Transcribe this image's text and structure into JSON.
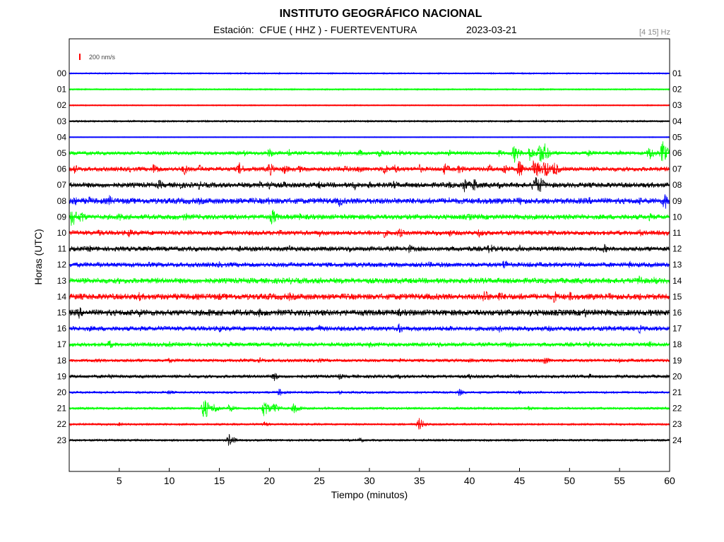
{
  "header": {
    "title": "INSTITUTO GEOGRÁFICO NACIONAL",
    "station_prefix": "Estación:",
    "station": "CFUE ( HHZ ) - FUERTEVENTURA",
    "date": "2023-03-21",
    "filter": "[4 15] Hz"
  },
  "colors": {
    "blue": "#0000ff",
    "green": "#00ff00",
    "red": "#ff0000",
    "black": "#000000"
  },
  "chart_data": {
    "type": "line",
    "title": "INSTITUTO GEOGRÁFICO NACIONAL",
    "xlabel": "Tiempo (minutos)",
    "ylabel": "Horas (UTC)",
    "xlim": [
      0,
      60
    ],
    "x_ticks": [
      5,
      10,
      15,
      20,
      25,
      30,
      35,
      40,
      45,
      50,
      55,
      60
    ],
    "scale_bar": "200 nm/s",
    "left_labels": [
      "00",
      "01",
      "02",
      "03",
      "04",
      "05",
      "06",
      "07",
      "08",
      "09",
      "10",
      "11",
      "12",
      "13",
      "14",
      "15",
      "16",
      "17",
      "18",
      "19",
      "20",
      "21",
      "22",
      "23"
    ],
    "right_labels": [
      "01",
      "02",
      "03",
      "04",
      "05",
      "06",
      "07",
      "08",
      "09",
      "10",
      "11",
      "12",
      "13",
      "14",
      "15",
      "16",
      "17",
      "18",
      "19",
      "20",
      "21",
      "22",
      "23",
      "24"
    ],
    "series": [
      {
        "color": "blue",
        "noise": 1.0,
        "events": [
          [
            9.5,
            1.5
          ]
        ]
      },
      {
        "color": "green",
        "noise": 1.0,
        "events": [
          [
            16,
            1.2
          ],
          [
            24,
            1.2
          ]
        ]
      },
      {
        "color": "red",
        "noise": 0.8,
        "events": []
      },
      {
        "color": "black",
        "noise": 1.2,
        "events": []
      },
      {
        "color": "blue",
        "noise": 0.6,
        "events": []
      },
      {
        "color": "green",
        "noise": 2.5,
        "events": [
          [
            17.5,
            5
          ],
          [
            20,
            8
          ],
          [
            22,
            6
          ],
          [
            27,
            7
          ],
          [
            29,
            6
          ],
          [
            31,
            7
          ],
          [
            33,
            5
          ],
          [
            38,
            5
          ],
          [
            43,
            6
          ],
          [
            44.5,
            14
          ],
          [
            46,
            12
          ],
          [
            47,
            18
          ],
          [
            47.5,
            15
          ],
          [
            52,
            6
          ],
          [
            55,
            5
          ],
          [
            58,
            12
          ],
          [
            59.3,
            18
          ]
        ]
      },
      {
        "color": "red",
        "noise": 3.0,
        "events": [
          [
            0.5,
            8
          ],
          [
            6,
            5
          ],
          [
            8.5,
            10
          ],
          [
            11.5,
            9
          ],
          [
            13,
            7
          ],
          [
            17,
            10
          ],
          [
            20,
            11
          ],
          [
            21.5,
            8
          ],
          [
            23,
            6
          ],
          [
            27.5,
            7
          ],
          [
            29,
            8
          ],
          [
            31.5,
            9
          ],
          [
            32.5,
            8
          ],
          [
            35,
            7
          ],
          [
            37.5,
            9
          ],
          [
            39,
            8
          ],
          [
            42,
            7
          ],
          [
            43.5,
            10
          ],
          [
            45,
            14
          ],
          [
            46.5,
            18
          ],
          [
            47.5,
            16
          ],
          [
            48.5,
            12
          ],
          [
            55,
            4
          ]
        ]
      },
      {
        "color": "black",
        "noise": 3.5,
        "events": [
          [
            9,
            8
          ],
          [
            11,
            8
          ],
          [
            13,
            7
          ],
          [
            19,
            7
          ],
          [
            20,
            9
          ],
          [
            21.5,
            6
          ],
          [
            25,
            6
          ],
          [
            28.5,
            8
          ],
          [
            30,
            6
          ],
          [
            32.5,
            7
          ],
          [
            38,
            6
          ],
          [
            39.5,
            12
          ],
          [
            40.5,
            11
          ],
          [
            43,
            6
          ],
          [
            46.5,
            16
          ],
          [
            47,
            14
          ]
        ]
      },
      {
        "color": "blue",
        "noise": 4.0,
        "events": [
          [
            0.5,
            8
          ],
          [
            2,
            7
          ],
          [
            4,
            9
          ],
          [
            13,
            6
          ],
          [
            17,
            6
          ],
          [
            20,
            7
          ],
          [
            27,
            9
          ],
          [
            30,
            6
          ],
          [
            38,
            6
          ],
          [
            42,
            6
          ],
          [
            45,
            7
          ],
          [
            52,
            6
          ],
          [
            57,
            6
          ],
          [
            59.5,
            14
          ]
        ]
      },
      {
        "color": "green",
        "noise": 3.5,
        "events": [
          [
            0.3,
            16
          ],
          [
            1.2,
            10
          ],
          [
            5,
            7
          ],
          [
            11.5,
            7
          ],
          [
            20.3,
            13
          ],
          [
            23,
            6
          ],
          [
            30,
            5
          ],
          [
            40,
            6
          ],
          [
            50,
            5
          ],
          [
            58,
            6
          ]
        ]
      },
      {
        "color": "red",
        "noise": 3.2,
        "events": [
          [
            3,
            6
          ],
          [
            6,
            7
          ],
          [
            12,
            6
          ],
          [
            21,
            5
          ],
          [
            25,
            6
          ],
          [
            30,
            6
          ],
          [
            31.5,
            7
          ],
          [
            33,
            8
          ],
          [
            38,
            6
          ],
          [
            41,
            7
          ],
          [
            48,
            5
          ],
          [
            57,
            6
          ]
        ]
      },
      {
        "color": "black",
        "noise": 3.2,
        "events": [
          [
            2,
            6
          ],
          [
            8,
            5
          ],
          [
            17,
            5
          ],
          [
            22,
            6
          ],
          [
            28,
            6
          ],
          [
            34,
            7
          ],
          [
            40,
            5
          ],
          [
            42,
            9
          ],
          [
            45,
            6
          ],
          [
            53.5,
            7
          ]
        ]
      },
      {
        "color": "blue",
        "noise": 3.2,
        "events": [
          [
            3,
            5
          ],
          [
            8,
            4
          ],
          [
            15,
            5
          ],
          [
            22,
            5
          ],
          [
            30,
            5
          ],
          [
            36,
            5
          ],
          [
            43.5,
            9
          ],
          [
            46,
            5
          ],
          [
            51,
            5
          ],
          [
            56,
            5
          ]
        ]
      },
      {
        "color": "green",
        "noise": 3.8,
        "events": [
          [
            5,
            5
          ],
          [
            13,
            5
          ],
          [
            22,
            6
          ],
          [
            25,
            6
          ],
          [
            31,
            5
          ],
          [
            40,
            5
          ],
          [
            45,
            5
          ],
          [
            51,
            5
          ],
          [
            57,
            10
          ],
          [
            58.5,
            7
          ]
        ]
      },
      {
        "color": "red",
        "noise": 4.2,
        "events": [
          [
            1,
            6
          ],
          [
            7,
            7
          ],
          [
            15,
            6
          ],
          [
            20,
            6
          ],
          [
            22,
            7
          ],
          [
            28,
            6
          ],
          [
            33,
            6
          ],
          [
            37,
            6
          ],
          [
            41.5,
            12
          ],
          [
            43,
            9
          ],
          [
            45,
            6
          ],
          [
            48.5,
            10
          ],
          [
            50,
            8
          ],
          [
            54,
            6
          ],
          [
            57,
            6
          ]
        ]
      },
      {
        "color": "black",
        "noise": 4.2,
        "events": [
          [
            1,
            9
          ],
          [
            7,
            7
          ],
          [
            14,
            6
          ],
          [
            19,
            7
          ],
          [
            24,
            6
          ],
          [
            27,
            6
          ],
          [
            33,
            6
          ],
          [
            36,
            6
          ],
          [
            41,
            6
          ],
          [
            46,
            6
          ],
          [
            51.5,
            8
          ],
          [
            58,
            6
          ]
        ]
      },
      {
        "color": "blue",
        "noise": 3.2,
        "events": [
          [
            2,
            5
          ],
          [
            9,
            5
          ],
          [
            15,
            6
          ],
          [
            20,
            5
          ],
          [
            25,
            6
          ],
          [
            33,
            8
          ],
          [
            38,
            6
          ],
          [
            43,
            6
          ],
          [
            48,
            5
          ],
          [
            54,
            5
          ],
          [
            57,
            7
          ]
        ]
      },
      {
        "color": "green",
        "noise": 2.8,
        "events": [
          [
            4,
            7
          ],
          [
            10,
            5
          ],
          [
            16,
            5
          ],
          [
            23,
            5
          ],
          [
            30,
            5
          ],
          [
            37,
            5
          ],
          [
            44,
            5
          ],
          [
            52,
            5
          ],
          [
            58,
            5
          ]
        ]
      },
      {
        "color": "red",
        "noise": 2.2,
        "events": [
          [
            3,
            4
          ],
          [
            10,
            4
          ],
          [
            19,
            5
          ],
          [
            25,
            4
          ],
          [
            33,
            4
          ],
          [
            40,
            4
          ],
          [
            47.5,
            8
          ],
          [
            55,
            4
          ]
        ]
      },
      {
        "color": "black",
        "noise": 2.2,
        "events": [
          [
            4,
            5
          ],
          [
            12,
            4
          ],
          [
            20.5,
            7
          ],
          [
            27,
            5
          ],
          [
            33,
            4
          ],
          [
            40,
            5
          ],
          [
            44,
            4
          ],
          [
            52,
            4
          ]
        ]
      },
      {
        "color": "blue",
        "noise": 1.5,
        "events": [
          [
            10,
            4
          ],
          [
            21,
            6
          ],
          [
            27,
            3
          ],
          [
            39,
            6
          ],
          [
            45,
            3
          ]
        ]
      },
      {
        "color": "green",
        "noise": 1.6,
        "events": [
          [
            13.5,
            18
          ],
          [
            14.5,
            8
          ],
          [
            16,
            7
          ],
          [
            19.5,
            14
          ],
          [
            20.5,
            10
          ],
          [
            22.5,
            9
          ],
          [
            46,
            4
          ]
        ]
      },
      {
        "color": "red",
        "noise": 1.4,
        "events": [
          [
            5,
            3
          ],
          [
            19.5,
            5
          ],
          [
            35,
            10
          ]
        ]
      },
      {
        "color": "black",
        "noise": 1.4,
        "events": [
          [
            16,
            10
          ],
          [
            29,
            4
          ]
        ]
      }
    ]
  }
}
